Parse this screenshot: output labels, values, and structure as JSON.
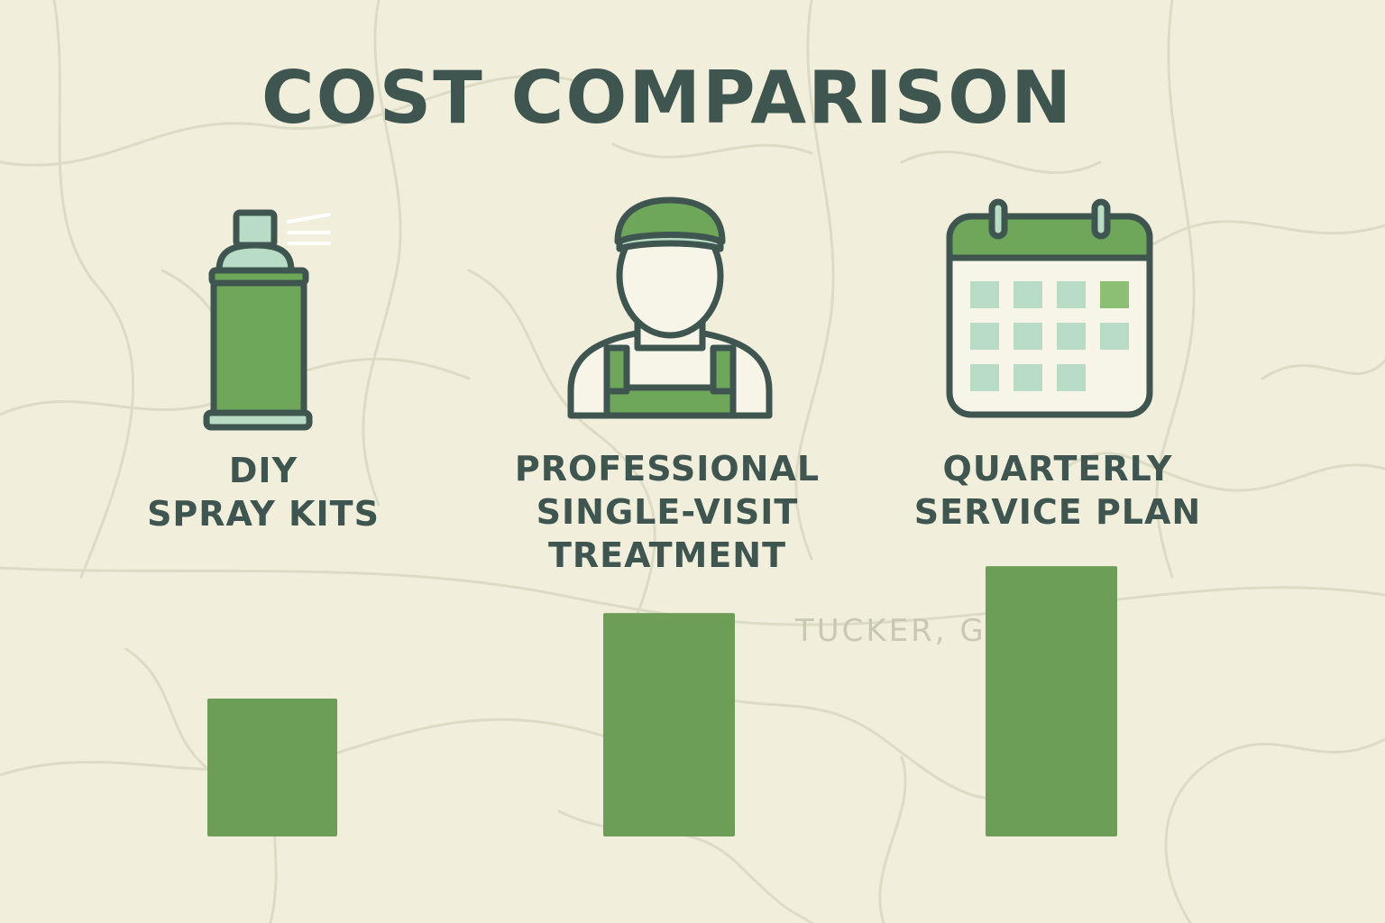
{
  "title": "COST COMPARISON",
  "watermark": "TUCKER, GA",
  "colors": {
    "background": "#f1efdc",
    "bar": "#6c9e58",
    "text": "#3f5550",
    "icon_fill": "#6ea75a",
    "icon_light": "#b9dcc6",
    "icon_outline": "#3f5550"
  },
  "categories": [
    {
      "lines": [
        "DIY",
        "SPRAY KITS"
      ],
      "icon": "spray-can-icon"
    },
    {
      "lines": [
        "PROFESSIONAL",
        "SINGLE-VISIT",
        "TREATMENT"
      ],
      "icon": "technician-icon"
    },
    {
      "lines": [
        "QUARTERLY",
        "SERVICE PLAN"
      ],
      "icon": "calendar-icon"
    }
  ],
  "chart_data": {
    "type": "bar",
    "title": "COST COMPARISON",
    "categories": [
      "DIY SPRAY KITS",
      "PROFESSIONAL SINGLE-VISIT TREATMENT",
      "QUARTERLY SERVICE PLAN"
    ],
    "values": [
      1.0,
      1.62,
      1.96
    ],
    "value_units": "relative (DIY = 1.0); no axis or values printed",
    "ylim": [
      0,
      2.1
    ],
    "grid": false,
    "legend": "none"
  }
}
